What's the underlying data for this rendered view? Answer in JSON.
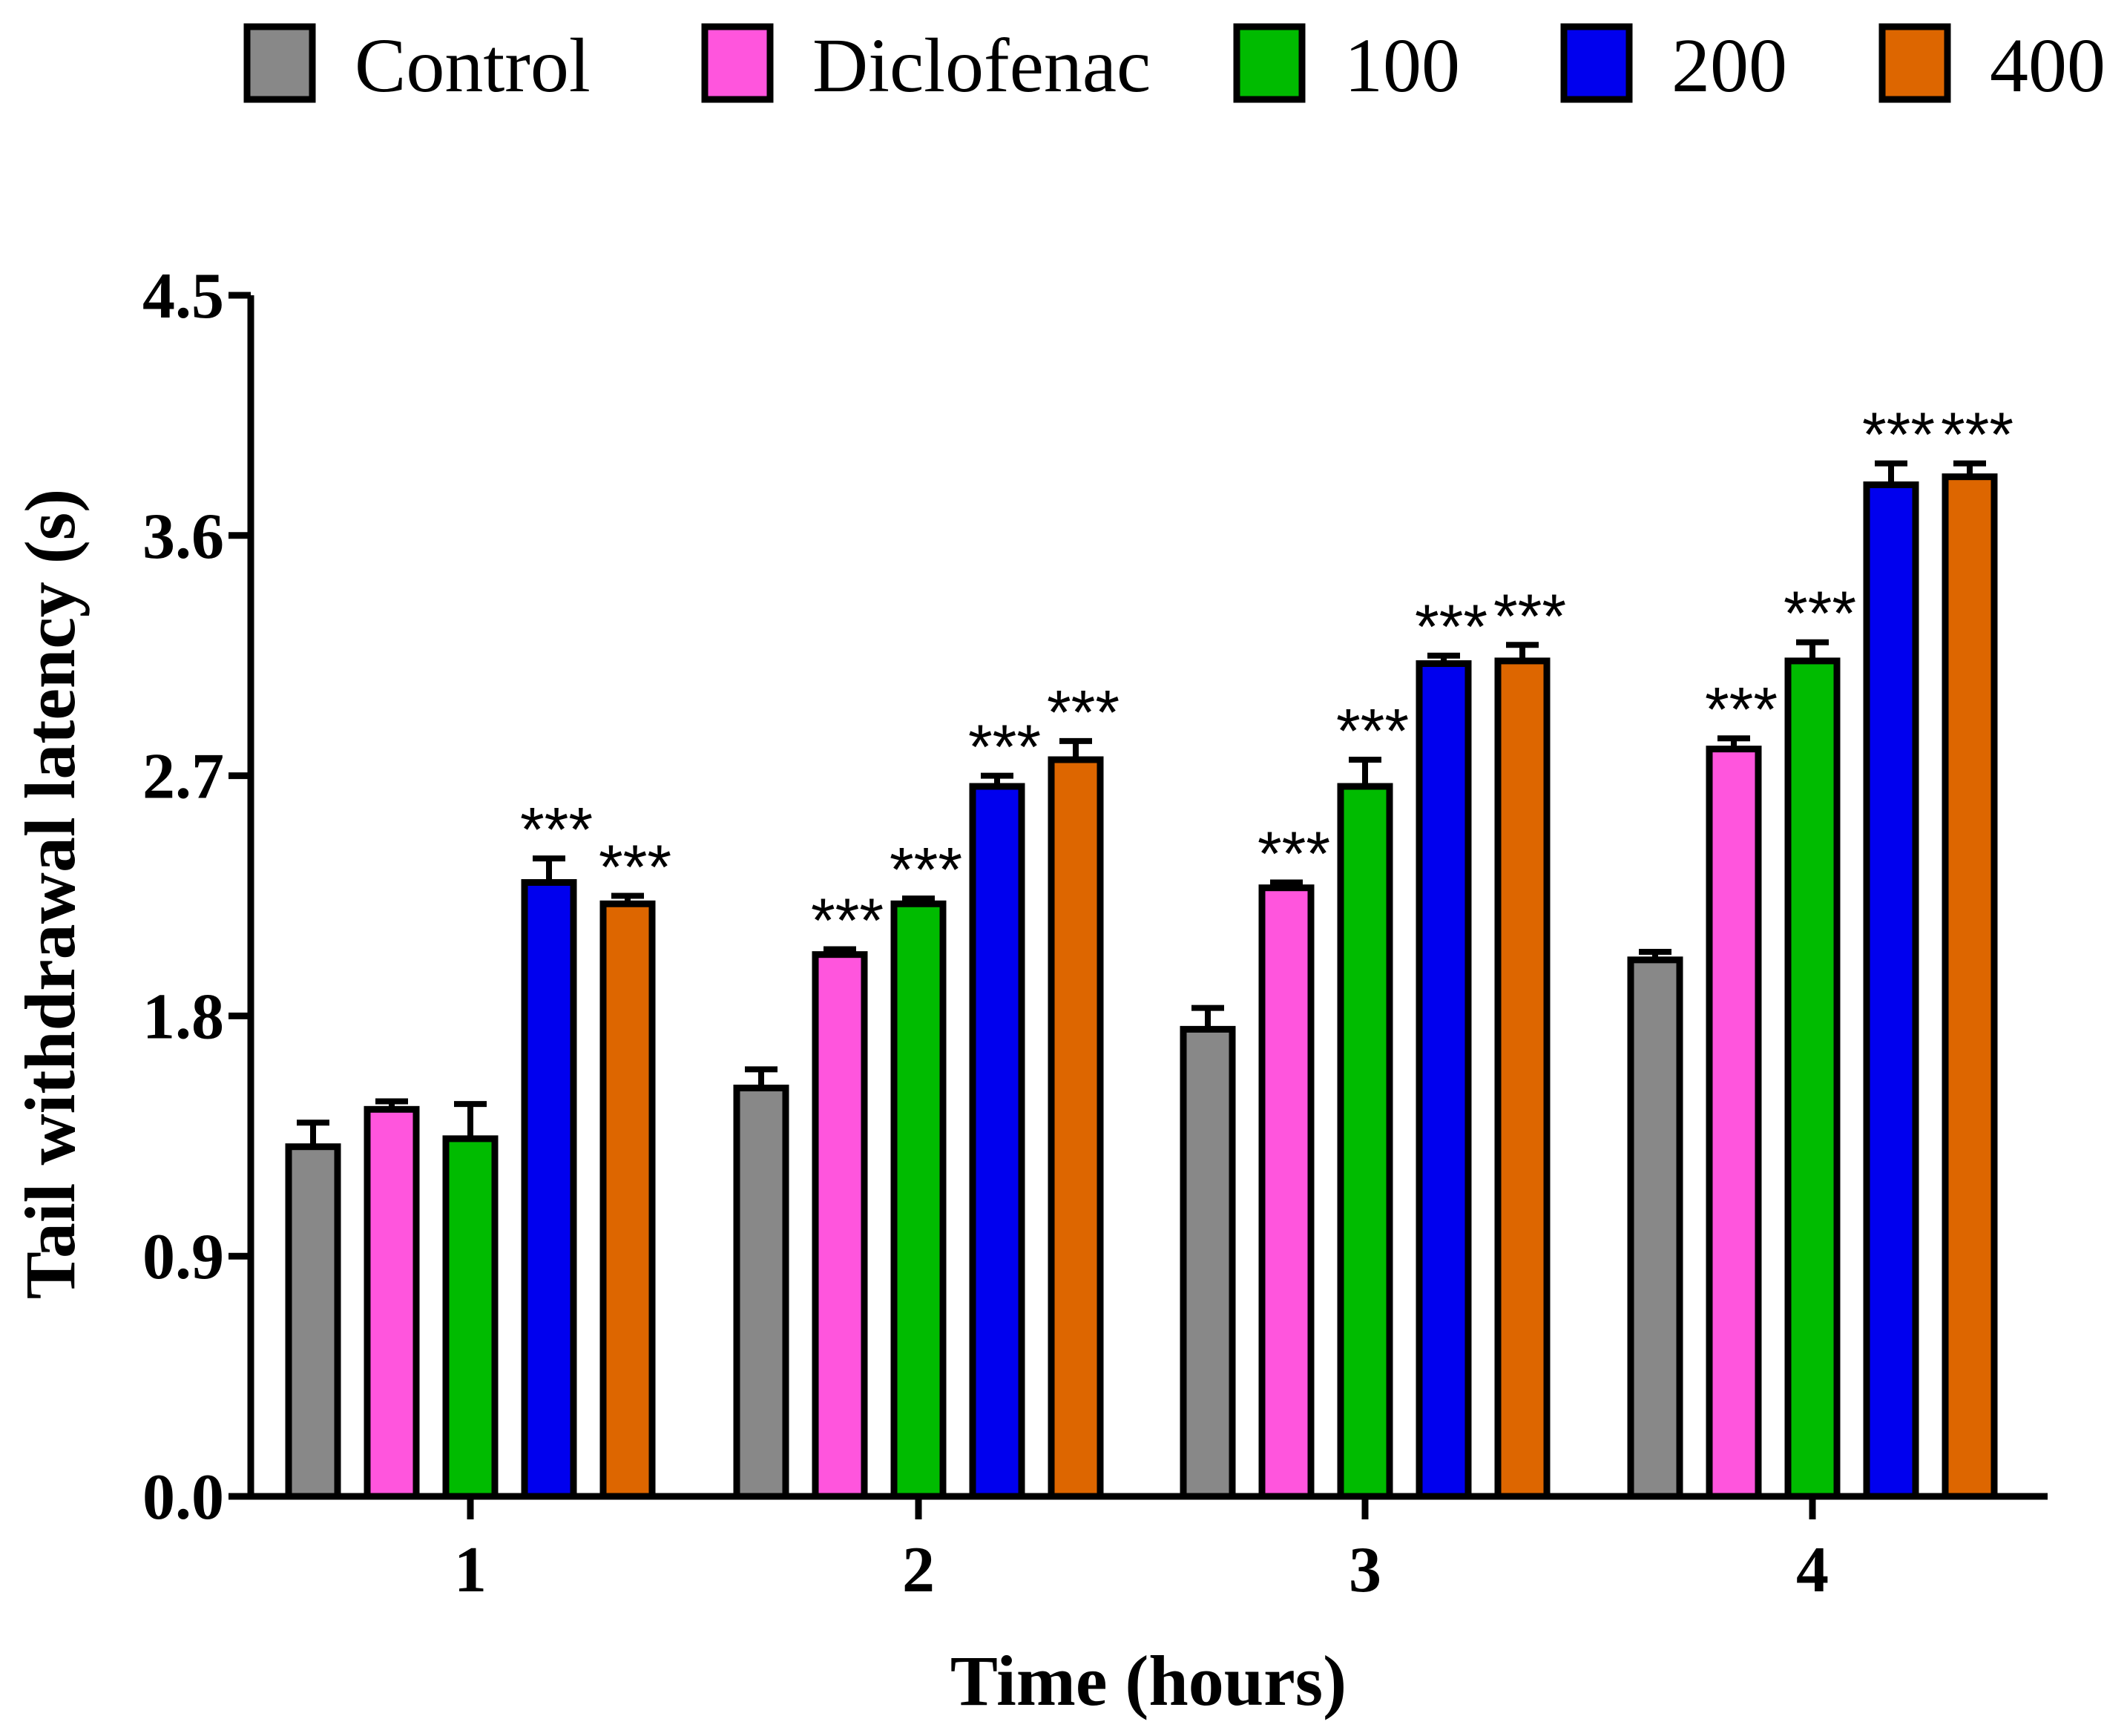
{
  "chart_data": {
    "type": "bar",
    "title": "",
    "xlabel": "Time (hours)",
    "ylabel": "Tail withdrawal latency (s)",
    "categories": [
      "1",
      "2",
      "3",
      "4"
    ],
    "ylim": [
      0,
      4.5
    ],
    "yticks": [
      "0.0",
      "0.9",
      "1.8",
      "2.7",
      "3.6",
      "4.5"
    ],
    "legend_position": "top",
    "grid": false,
    "series": [
      {
        "name": "Control",
        "color": "#888888",
        "values": [
          1.31,
          1.53,
          1.75,
          2.01
        ],
        "errors": [
          0.09,
          0.07,
          0.08,
          0.03
        ],
        "significance": [
          "",
          "",
          "",
          ""
        ]
      },
      {
        "name": "Diclofenac",
        "color": "#ff55dd",
        "values": [
          1.45,
          2.03,
          2.28,
          2.8
        ],
        "errors": [
          0.03,
          0.02,
          0.02,
          0.04
        ],
        "significance": [
          "",
          "***",
          "***",
          "***"
        ]
      },
      {
        "name": "100",
        "color": "#00bb00",
        "values": [
          1.34,
          2.22,
          2.66,
          3.13
        ],
        "errors": [
          0.13,
          0.02,
          0.1,
          0.07
        ],
        "significance": [
          "",
          "***",
          "***",
          "***"
        ]
      },
      {
        "name": "200",
        "color": "#0000ee",
        "values": [
          2.3,
          2.66,
          3.12,
          3.79
        ],
        "errors": [
          0.09,
          0.04,
          0.03,
          0.08
        ],
        "significance": [
          "***",
          "***",
          "***",
          "***"
        ]
      },
      {
        "name": "400",
        "color": "#dd6600",
        "values": [
          2.22,
          2.76,
          3.13,
          3.82
        ],
        "errors": [
          0.03,
          0.07,
          0.06,
          0.05
        ],
        "significance": [
          "***",
          "***",
          "***",
          "***"
        ]
      }
    ]
  }
}
